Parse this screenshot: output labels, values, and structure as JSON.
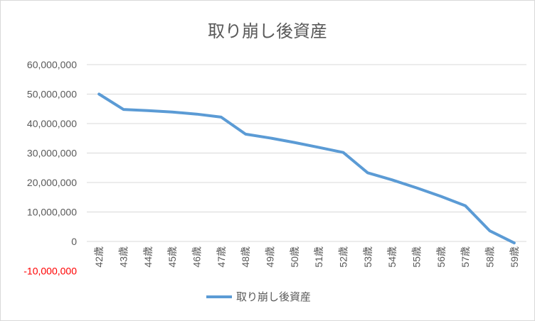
{
  "chart_data": {
    "type": "line",
    "title": "取り崩し後資産",
    "categories": [
      "42歳",
      "43歳",
      "44歳",
      "45歳",
      "46歳",
      "47歳",
      "48歳",
      "49歳",
      "50歳",
      "51歳",
      "52歳",
      "53歳",
      "54歳",
      "55歳",
      "56歳",
      "57歳",
      "58歳",
      "59歳"
    ],
    "series": [
      {
        "name": "取り崩し後資産",
        "color": "#5b9bd5",
        "values": [
          50000000,
          44800000,
          44400000,
          43900000,
          43200000,
          42200000,
          36400000,
          35100000,
          33600000,
          31900000,
          30200000,
          23300000,
          20900000,
          18200000,
          15300000,
          12100000,
          3600000,
          -500000
        ]
      }
    ],
    "ylim": [
      -10000000,
      60000000
    ],
    "yticks": [
      {
        "value": 60000000,
        "label": "60,000,000",
        "color": "#595959"
      },
      {
        "value": 50000000,
        "label": "50,000,000",
        "color": "#595959"
      },
      {
        "value": 40000000,
        "label": "40,000,000",
        "color": "#595959"
      },
      {
        "value": 30000000,
        "label": "30,000,000",
        "color": "#595959"
      },
      {
        "value": 20000000,
        "label": "20,000,000",
        "color": "#595959"
      },
      {
        "value": 10000000,
        "label": "10,000,000",
        "color": "#595959"
      },
      {
        "value": 0,
        "label": "0",
        "color": "#595959"
      },
      {
        "value": -10000000,
        "label": "-10,000,000",
        "color": "#ff0000"
      }
    ],
    "grid": true,
    "legend": "bottom"
  }
}
